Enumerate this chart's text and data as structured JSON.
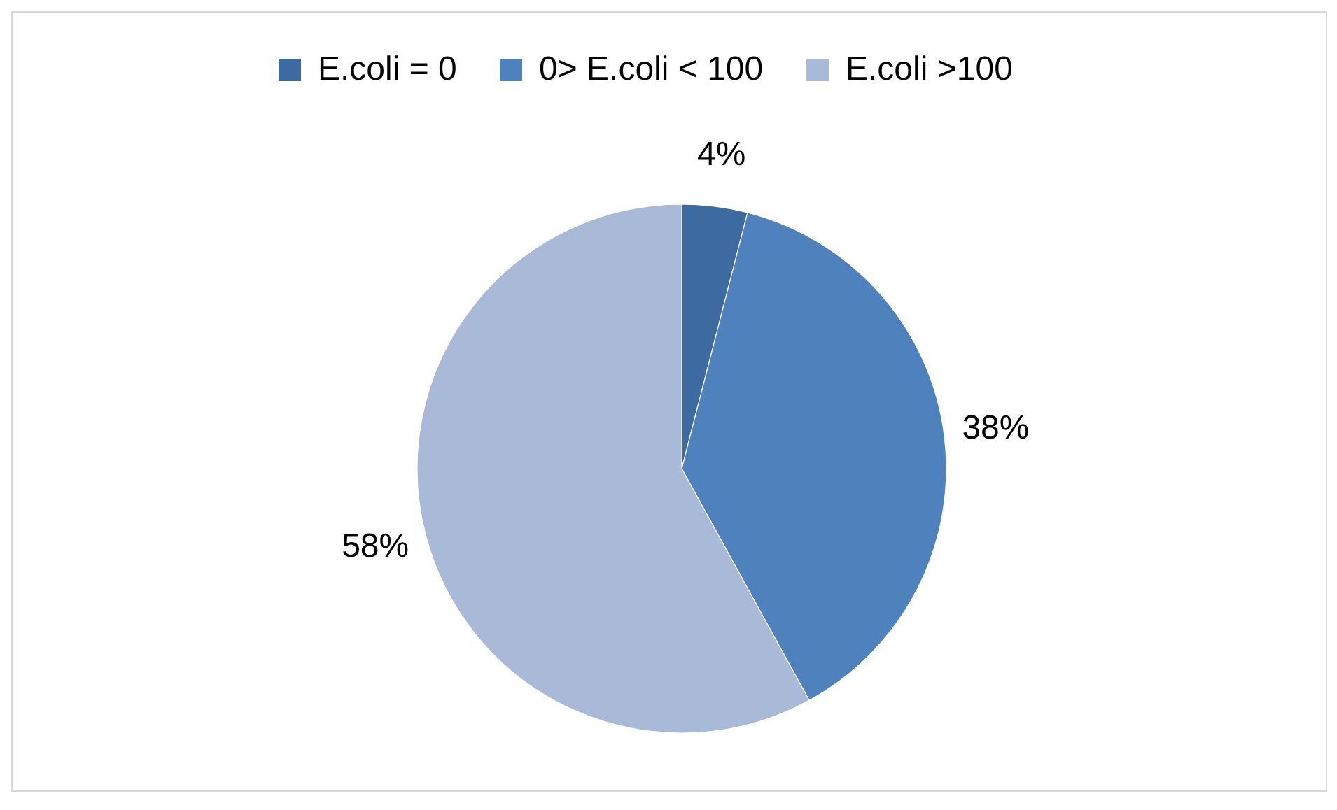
{
  "chart_data": {
    "type": "pie",
    "categories": [
      "E.coli = 0",
      "0> E.coli < 100",
      "E.coli >100"
    ],
    "values": [
      4,
      38,
      58
    ],
    "colors": [
      "#3c6aa1",
      "#4f81bd",
      "#a9b9d8"
    ],
    "value_labels": [
      "4%",
      "38%",
      "58%"
    ],
    "legend": "top"
  }
}
